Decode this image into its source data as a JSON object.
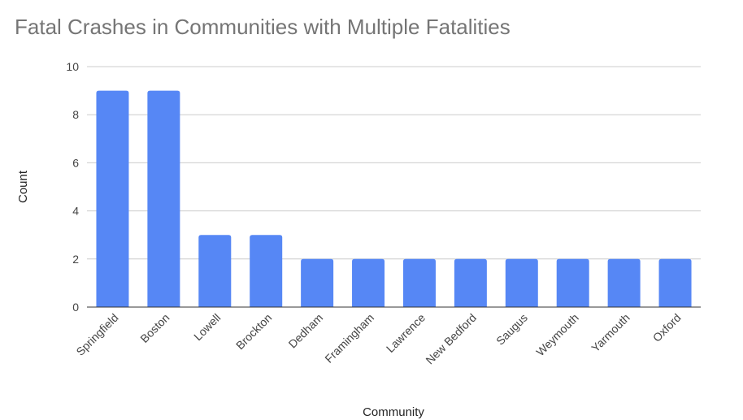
{
  "chart_data": {
    "type": "bar",
    "title": "Fatal Crashes in Communities with Multiple Fatalities",
    "xlabel": "Community",
    "ylabel": "Count",
    "ylim": [
      0,
      10
    ],
    "yticks": [
      0,
      2,
      4,
      6,
      8,
      10
    ],
    "grid": true,
    "legend": "none",
    "bar_color": "#5687f5",
    "categories": [
      "Springfield",
      "Boston",
      "Lowell",
      "Brockton",
      "Dedham",
      "Framingham",
      "Lawrence",
      "New Bedford",
      "Saugus",
      "Weymouth",
      "Yarmouth",
      "Oxford"
    ],
    "series": [
      {
        "values": [
          9,
          9,
          3,
          3,
          2,
          2,
          2,
          2,
          2,
          2,
          2,
          2
        ]
      }
    ]
  }
}
